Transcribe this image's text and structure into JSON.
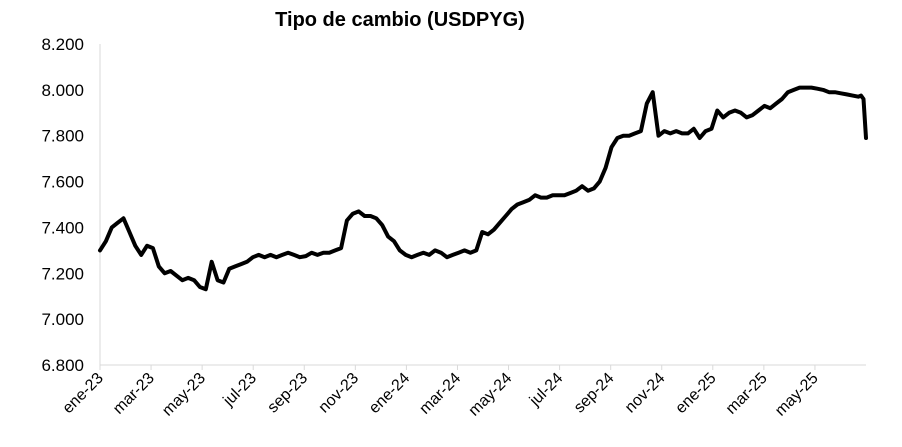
{
  "chart_data": {
    "type": "line",
    "title": "Tipo de cambio (USDPYG)",
    "xlabel": "",
    "ylabel": "",
    "ylim": [
      6800,
      8200
    ],
    "yticks": [
      6800,
      7000,
      7200,
      7400,
      7600,
      7800,
      8000,
      8200
    ],
    "ytick_labels": [
      "6.800",
      "7.000",
      "7.200",
      "7.400",
      "7.600",
      "7.800",
      "8.000",
      "8.200"
    ],
    "xlim": [
      "2023-01-01",
      "2025-07-01"
    ],
    "xtick_labels": [
      "ene-23",
      "mar-23",
      "may-23",
      "jul-23",
      "sep-23",
      "nov-23",
      "ene-24",
      "mar-24",
      "may-24",
      "jul-24",
      "sep-24",
      "nov-24",
      "ene-25",
      "mar-25",
      "may-25"
    ],
    "grid": false,
    "legend": "none",
    "line_color": "#000000",
    "series": [
      {
        "x": [
          "2023-01-01",
          "2023-01-08",
          "2023-01-15",
          "2023-01-22",
          "2023-01-29",
          "2023-02-05",
          "2023-02-12",
          "2023-02-19",
          "2023-02-26",
          "2023-03-05",
          "2023-03-12",
          "2023-03-19",
          "2023-03-26",
          "2023-04-02",
          "2023-04-09",
          "2023-04-16",
          "2023-04-23",
          "2023-04-30",
          "2023-05-07",
          "2023-05-14",
          "2023-05-21",
          "2023-05-28",
          "2023-06-04",
          "2023-06-11",
          "2023-06-18",
          "2023-06-25",
          "2023-07-02",
          "2023-07-09",
          "2023-07-16",
          "2023-07-23",
          "2023-07-30",
          "2023-08-06",
          "2023-08-13",
          "2023-08-20",
          "2023-08-27",
          "2023-09-03",
          "2023-09-10",
          "2023-09-17",
          "2023-09-24",
          "2023-10-01",
          "2023-10-08",
          "2023-10-15",
          "2023-10-22",
          "2023-10-29",
          "2023-11-05",
          "2023-11-12",
          "2023-11-19",
          "2023-11-26",
          "2023-12-03",
          "2023-12-10",
          "2023-12-17",
          "2023-12-24",
          "2023-12-31",
          "2024-01-07",
          "2024-01-14",
          "2024-01-21",
          "2024-01-28",
          "2024-02-04",
          "2024-02-11",
          "2024-02-18",
          "2024-02-25",
          "2024-03-03",
          "2024-03-10",
          "2024-03-17",
          "2024-03-24",
          "2024-03-31",
          "2024-04-07",
          "2024-04-14",
          "2024-04-21",
          "2024-04-28",
          "2024-05-05",
          "2024-05-12",
          "2024-05-19",
          "2024-05-26",
          "2024-06-02",
          "2024-06-09",
          "2024-06-16",
          "2024-06-23",
          "2024-06-30",
          "2024-07-07",
          "2024-07-14",
          "2024-07-21",
          "2024-07-28",
          "2024-08-04",
          "2024-08-11",
          "2024-08-18",
          "2024-08-25",
          "2024-09-01",
          "2024-09-08",
          "2024-09-15",
          "2024-09-22",
          "2024-09-29",
          "2024-10-06",
          "2024-10-13",
          "2024-10-20",
          "2024-10-27",
          "2024-11-03",
          "2024-11-10",
          "2024-11-17",
          "2024-11-24",
          "2024-12-01",
          "2024-12-08",
          "2024-12-15",
          "2024-12-22",
          "2024-12-29",
          "2025-01-05",
          "2025-01-12",
          "2025-01-19",
          "2025-01-26",
          "2025-02-02",
          "2025-02-09",
          "2025-02-16",
          "2025-02-23",
          "2025-03-02",
          "2025-03-09",
          "2025-03-16",
          "2025-03-23",
          "2025-03-30",
          "2025-04-06",
          "2025-04-13",
          "2025-04-20",
          "2025-04-27",
          "2025-05-04",
          "2025-05-11",
          "2025-05-18",
          "2025-05-25",
          "2025-06-01",
          "2025-06-08",
          "2025-06-15",
          "2025-06-22",
          "2025-06-25",
          "2025-06-28",
          "2025-07-01"
        ],
        "values": [
          7300,
          7340,
          7400,
          7420,
          7440,
          7380,
          7320,
          7280,
          7320,
          7310,
          7230,
          7200,
          7210,
          7190,
          7170,
          7180,
          7170,
          7140,
          7130,
          7250,
          7170,
          7160,
          7220,
          7230,
          7240,
          7250,
          7270,
          7280,
          7270,
          7280,
          7270,
          7280,
          7290,
          7280,
          7270,
          7275,
          7290,
          7280,
          7290,
          7290,
          7300,
          7310,
          7430,
          7460,
          7470,
          7450,
          7450,
          7440,
          7410,
          7360,
          7340,
          7300,
          7280,
          7270,
          7280,
          7290,
          7280,
          7300,
          7290,
          7270,
          7280,
          7290,
          7300,
          7290,
          7300,
          7380,
          7370,
          7390,
          7420,
          7450,
          7480,
          7500,
          7510,
          7520,
          7540,
          7530,
          7530,
          7540,
          7540,
          7540,
          7550,
          7560,
          7580,
          7560,
          7570,
          7600,
          7660,
          7750,
          7790,
          7800,
          7800,
          7810,
          7820,
          7940,
          7990,
          7800,
          7820,
          7810,
          7820,
          7810,
          7810,
          7830,
          7790,
          7820,
          7830,
          7910,
          7880,
          7900,
          7910,
          7900,
          7880,
          7890,
          7910,
          7930,
          7920,
          7940,
          7960,
          7990,
          8000,
          8010,
          8010,
          8010,
          8005,
          8000,
          7990,
          7990,
          7985,
          7980,
          7975,
          7970,
          7975,
          7960,
          7790
        ]
      }
    ]
  }
}
